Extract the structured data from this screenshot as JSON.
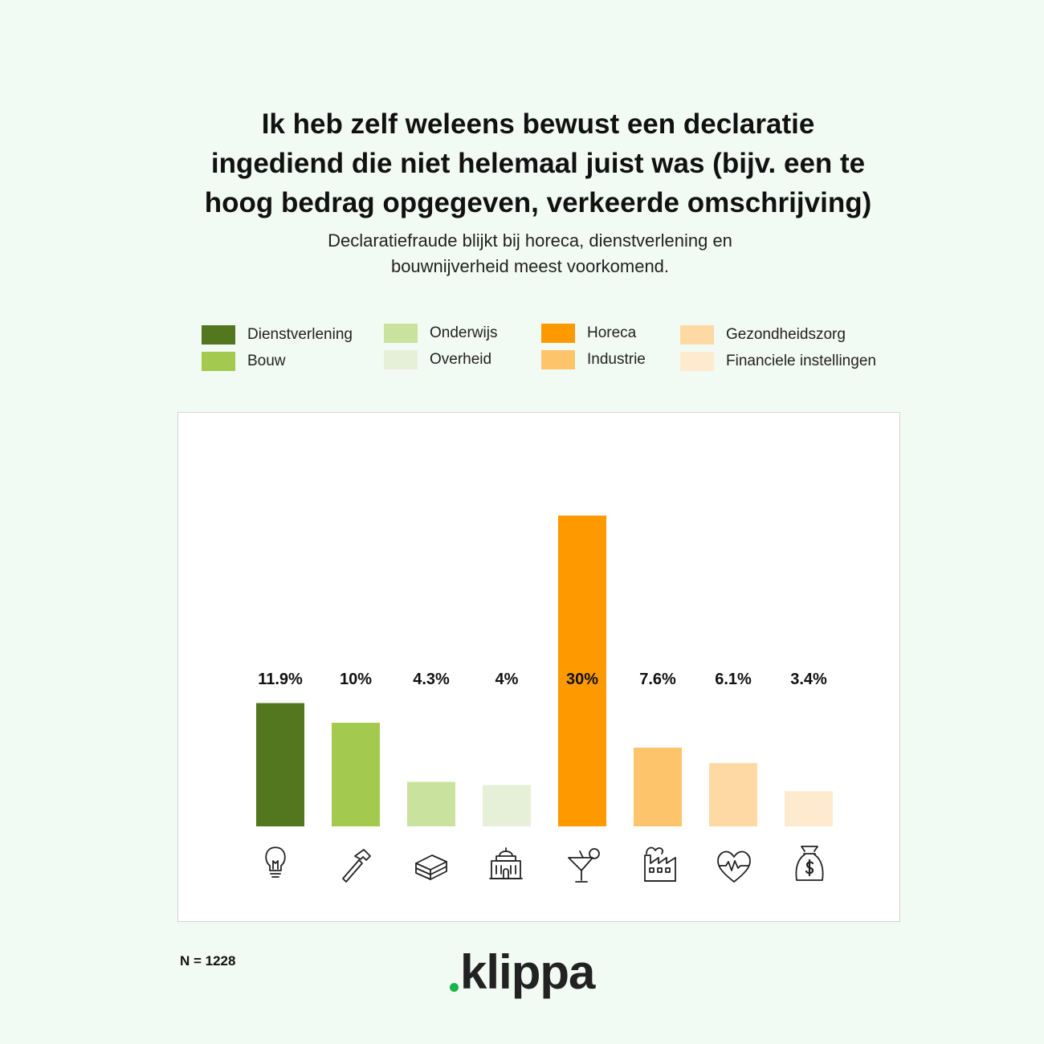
{
  "title": "Ik heb zelf weleens bewust een declaratie\ningediend die niet helemaal juist was (bijv. een te\nhoog bedrag opgegeven, verkeerde omschrijving)",
  "subtitle": "Declaratiefraude blijkt bij horeca, dienstverlening en\nbouwnijverheid meest voorkomend.",
  "legend": [
    {
      "label": "Dienstverlening",
      "color": "#52771f"
    },
    {
      "label": "Bouw",
      "color": "#a3c94f"
    },
    {
      "label": "Onderwijs",
      "color": "#c9e39f"
    },
    {
      "label": "Overheid",
      "color": "#e6f0d8"
    },
    {
      "label": "Horeca",
      "color": "#fe9a00"
    },
    {
      "label": "Industrie",
      "color": "#fdc46b"
    },
    {
      "label": "Gezondheidszorg",
      "color": "#fed9a4"
    },
    {
      "label": "Financiele instellingen",
      "color": "#feebcf"
    }
  ],
  "chart_data": {
    "type": "bar",
    "title": "Ik heb zelf weleens bewust een declaratie ingediend die niet helemaal juist was (bijv. een te hoog bedrag opgegeven, verkeerde omschrijving)",
    "categories": [
      "Dienstverlening",
      "Bouw",
      "Onderwijs",
      "Overheid",
      "Horeca",
      "Industrie",
      "Gezondheidszorg",
      "Financiele instellingen"
    ],
    "values": [
      11.9,
      10,
      4.3,
      4,
      30,
      7.6,
      6.1,
      3.4
    ],
    "value_labels": [
      "11.9%",
      "10%",
      "4.3%",
      "4%",
      "30%",
      "7.6%",
      "6.1%",
      "3.4%"
    ],
    "colors": [
      "#52771f",
      "#a3c94f",
      "#c9e39f",
      "#e6f0d8",
      "#fe9a00",
      "#fdc46b",
      "#fed9a4",
      "#feebcf"
    ],
    "icons": [
      "lightbulb-icon",
      "hammer-icon",
      "books-icon",
      "government-building-icon",
      "cocktail-icon",
      "factory-icon",
      "heart-pulse-icon",
      "money-bag-icon"
    ],
    "xlabel": "",
    "ylabel": "",
    "grid": false,
    "legend_position": "top"
  },
  "footer": {
    "n_label": "N = 1228"
  },
  "logo": {
    "text": "klippa",
    "dot_color": "#19b34a"
  }
}
